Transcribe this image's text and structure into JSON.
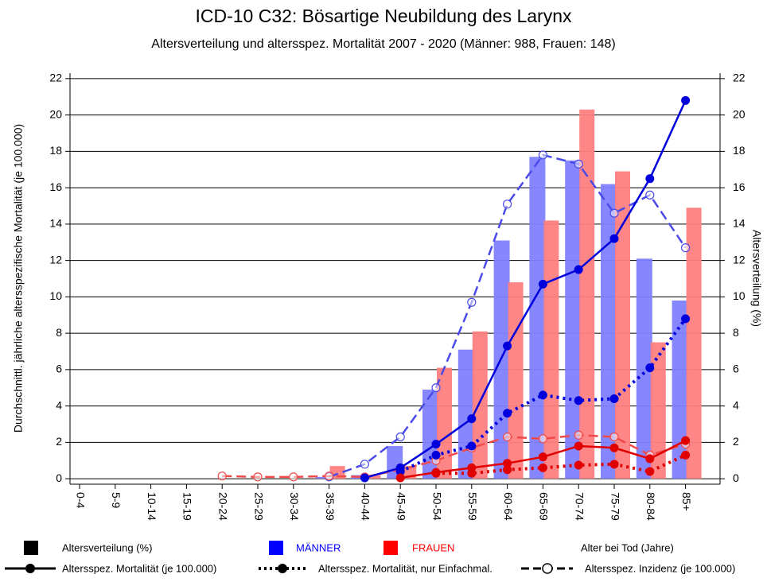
{
  "chart_data": {
    "type": "bar_line",
    "title": "ICD-10 C32: Bösartige Neubildung des Larynx",
    "subtitle": "Altersverteilung und altersspez. Mortalität 2007 - 2020 (Männer: 988, Frauen: 148)",
    "y_label": "Durchschnittl. jährliche altersspezifische Mortalität (je 100.000)",
    "y2_label": "Altersverteilung (%)",
    "x_label": "Alter bei Tod (Jahre)",
    "categories": [
      "0-4",
      "5-9",
      "10-14",
      "15-19",
      "20-24",
      "25-29",
      "30-34",
      "35-39",
      "40-44",
      "45-49",
      "50-54",
      "55-59",
      "60-64",
      "65-69",
      "70-74",
      "75-79",
      "80-84",
      "85+"
    ],
    "ylim": [
      -0.3,
      22.3
    ],
    "yticks": [
      0,
      2,
      4,
      6,
      8,
      10,
      12,
      14,
      16,
      18,
      20,
      22
    ],
    "y2lim": [
      -0.3,
      22.3
    ],
    "y2ticks": [
      0,
      2,
      4,
      6,
      8,
      10,
      12,
      14,
      16,
      18,
      20,
      22
    ],
    "grid": true,
    "legend": {
      "bars": "Altersverteilung (%)",
      "solid": "Altersspez. Mortalität (je 100.000)",
      "dotted": "Altersspez. Mortalität, nur Einfachmal.",
      "dashed": "Altersspez. Inzidenz (je 100.000)"
    },
    "series": [
      {
        "name": "MÄNNER",
        "type": "bar",
        "axis": "y2",
        "color": "#8080ff",
        "values": [
          0,
          0,
          0,
          0,
          0,
          0,
          0,
          0.1,
          0.2,
          1.8,
          4.9,
          7.1,
          13.1,
          17.7,
          17.5,
          16.2,
          12.1,
          9.8
        ]
      },
      {
        "name": "FRAUEN",
        "type": "bar",
        "axis": "y2",
        "color": "#ff8080",
        "values": [
          0,
          0,
          0,
          0,
          0,
          0,
          0,
          0.7,
          0.2,
          0.7,
          6.1,
          8.1,
          10.8,
          14.2,
          20.3,
          16.9,
          7.5,
          14.9
        ]
      },
      {
        "type": "line",
        "style": "dashed",
        "color": "#4a4ae8",
        "values": [
          null,
          null,
          null,
          null,
          null,
          null,
          null,
          0.1,
          0.8,
          2.3,
          5.0,
          9.7,
          15.1,
          17.8,
          17.3,
          14.6,
          15.6,
          12.7
        ]
      },
      {
        "type": "line",
        "style": "dashed",
        "color": "#f04a4a",
        "values": [
          null,
          null,
          null,
          null,
          0.15,
          0.1,
          0.1,
          0.15,
          0.1,
          0.5,
          1.0,
          1.7,
          2.3,
          2.2,
          2.4,
          2.3,
          1.3,
          1.9
        ]
      },
      {
        "type": "line",
        "style": "solid",
        "color": "#0000dd",
        "values": [
          null,
          null,
          null,
          null,
          null,
          null,
          null,
          null,
          0.05,
          0.6,
          1.9,
          3.3,
          7.3,
          10.7,
          11.5,
          13.2,
          16.5,
          20.8
        ]
      },
      {
        "type": "line",
        "style": "dotted",
        "color": "#0000dd",
        "values": [
          null,
          null,
          null,
          null,
          null,
          null,
          null,
          null,
          null,
          0.4,
          1.3,
          1.8,
          3.6,
          4.6,
          4.3,
          4.4,
          6.1,
          8.8
        ]
      },
      {
        "type": "line",
        "style": "solid",
        "color": "#e00000",
        "values": [
          null,
          null,
          null,
          null,
          null,
          null,
          null,
          null,
          null,
          0.05,
          0.35,
          0.6,
          0.85,
          1.2,
          1.8,
          1.7,
          1.1,
          2.1
        ]
      },
      {
        "type": "line",
        "style": "dotted",
        "color": "#e00000",
        "values": [
          null,
          null,
          null,
          null,
          null,
          null,
          null,
          null,
          null,
          null,
          0.3,
          0.3,
          0.5,
          0.6,
          0.75,
          0.8,
          0.4,
          1.3
        ]
      }
    ]
  }
}
